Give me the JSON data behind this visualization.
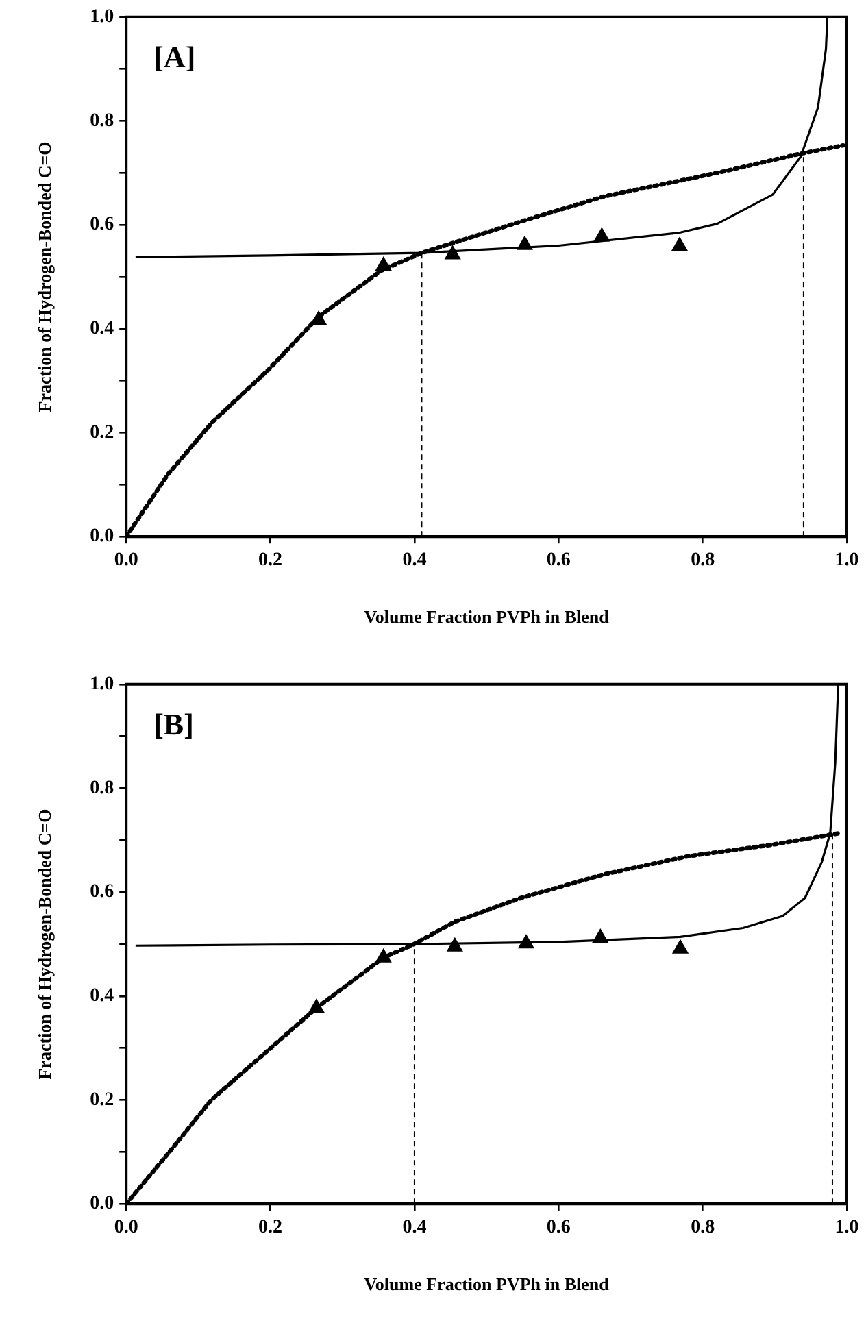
{
  "chart_data": [
    {
      "type": "line",
      "xlabel": "Volume Fraction PVPh in Blend",
      "ylabel": "Fraction of Hydrogen-Bonded C=O",
      "annotations": [
        "[A]"
      ],
      "xlim": [
        0,
        1
      ],
      "ylim": [
        0,
        1
      ],
      "xticks": [
        {
          "value": 0,
          "label": "0.0"
        },
        {
          "value": 0.2,
          "label": "0.2"
        },
        {
          "value": 0.4,
          "label": "0.4"
        },
        {
          "value": 0.6,
          "label": "0.6"
        },
        {
          "value": 0.8,
          "label": "0.8"
        },
        {
          "value": 1,
          "label": "1.0"
        }
      ],
      "yticks": [
        {
          "value": 0,
          "label": "0.0"
        },
        {
          "value": 0.1,
          "label": null
        },
        {
          "value": 0.2,
          "label": "0.2"
        },
        {
          "value": 0.3,
          "label": null
        },
        {
          "value": 0.4,
          "label": "0.4"
        },
        {
          "value": 0.5,
          "label": null
        },
        {
          "value": 0.6,
          "label": "0.6"
        },
        {
          "value": 0.7,
          "label": null
        },
        {
          "value": 0.8,
          "label": "0.8"
        },
        {
          "value": 0.9,
          "label": null
        },
        {
          "value": 1,
          "label": "1.0"
        }
      ],
      "grid": false,
      "legend": false,
      "series": [
        {
          "type": "line",
          "color": "#000000",
          "line_style": "solid",
          "marker": "none",
          "x": [
            0.013,
            0.2,
            0.41,
            0.6,
            0.768,
            0.82,
            0.897,
            0.936,
            0.96,
            0.971,
            0.973
          ],
          "values": [
            0.538,
            0.541,
            0.546,
            0.56,
            0.585,
            0.602,
            0.658,
            0.731,
            0.826,
            0.938,
            1.0
          ]
        },
        {
          "type": "line",
          "color": "#000000",
          "line_style": "dotted",
          "marker": "none",
          "x": [
            0,
            0.058,
            0.12,
            0.198,
            0.267,
            0.354,
            0.41,
            0.556,
            0.664,
            0.82,
            0.936,
            0.995
          ],
          "values": [
            0,
            0.12,
            0.221,
            0.322,
            0.423,
            0.512,
            0.546,
            0.61,
            0.655,
            0.7,
            0.737,
            0.753
          ]
        },
        {
          "type": "scatter",
          "color": "#000000",
          "marker": "triangle",
          "x": [
            0.267,
            0.357,
            0.453,
            0.553,
            0.66,
            0.768
          ],
          "values": [
            0.417,
            0.521,
            0.543,
            0.561,
            0.577,
            0.559
          ]
        },
        {
          "type": "line",
          "color": "#000000",
          "line_style": "dashed",
          "marker": "none",
          "x": [
            0.41,
            0.41
          ],
          "values": [
            0,
            0.546
          ]
        },
        {
          "type": "line",
          "color": "#000000",
          "line_style": "dashed",
          "marker": "none",
          "x": [
            0.94,
            0.94
          ],
          "values": [
            0,
            0.737
          ]
        }
      ]
    },
    {
      "type": "line",
      "xlabel": "Volume Fraction PVPh in Blend",
      "ylabel": "Fraction of Hydrogen-Bonded C=O",
      "annotations": [
        "[B]"
      ],
      "xlim": [
        0,
        1
      ],
      "ylim": [
        0,
        1
      ],
      "xticks": [
        {
          "value": 0,
          "label": "0.0"
        },
        {
          "value": 0.2,
          "label": "0.2"
        },
        {
          "value": 0.4,
          "label": "0.4"
        },
        {
          "value": 0.6,
          "label": "0.6"
        },
        {
          "value": 0.8,
          "label": "0.8"
        },
        {
          "value": 1,
          "label": "1.0"
        }
      ],
      "yticks": [
        {
          "value": 0,
          "label": "0.0"
        },
        {
          "value": 0.1,
          "label": null
        },
        {
          "value": 0.2,
          "label": "0.2"
        },
        {
          "value": 0.3,
          "label": null
        },
        {
          "value": 0.4,
          "label": "0.4"
        },
        {
          "value": 0.5,
          "label": null
        },
        {
          "value": 0.6,
          "label": "0.6"
        },
        {
          "value": 0.7,
          "label": null
        },
        {
          "value": 0.8,
          "label": "0.8"
        },
        {
          "value": 0.9,
          "label": null
        },
        {
          "value": 1,
          "label": "1.0"
        }
      ],
      "grid": false,
      "legend": false,
      "series": [
        {
          "type": "line",
          "color": "#000000",
          "line_style": "solid",
          "marker": "none",
          "x": [
            0.013,
            0.2,
            0.4,
            0.6,
            0.769,
            0.856,
            0.911,
            0.942,
            0.965,
            0.977,
            0.984,
            0.988
          ],
          "values": [
            0.497,
            0.499,
            0.5,
            0.504,
            0.514,
            0.531,
            0.554,
            0.589,
            0.657,
            0.714,
            0.851,
            1.0
          ]
        },
        {
          "type": "line",
          "color": "#000000",
          "line_style": "dotted",
          "marker": "none",
          "x": [
            0,
            0.06,
            0.118,
            0.264,
            0.357,
            0.398,
            0.456,
            0.548,
            0.662,
            0.779,
            0.895,
            0.992
          ],
          "values": [
            0,
            0.1,
            0.2,
            0.377,
            0.474,
            0.499,
            0.543,
            0.589,
            0.634,
            0.669,
            0.691,
            0.714
          ]
        },
        {
          "type": "scatter",
          "color": "#000000",
          "marker": "triangle",
          "x": [
            0.264,
            0.357,
            0.456,
            0.555,
            0.658,
            0.769
          ],
          "values": [
            0.377,
            0.474,
            0.495,
            0.501,
            0.512,
            0.491
          ]
        },
        {
          "type": "line",
          "color": "#000000",
          "line_style": "dashed",
          "marker": "none",
          "x": [
            0.4,
            0.4
          ],
          "values": [
            0,
            0.499
          ]
        },
        {
          "type": "line",
          "color": "#000000",
          "line_style": "dashed",
          "marker": "none",
          "x": [
            0.98,
            0.98
          ],
          "values": [
            0,
            0.714
          ]
        }
      ]
    }
  ]
}
